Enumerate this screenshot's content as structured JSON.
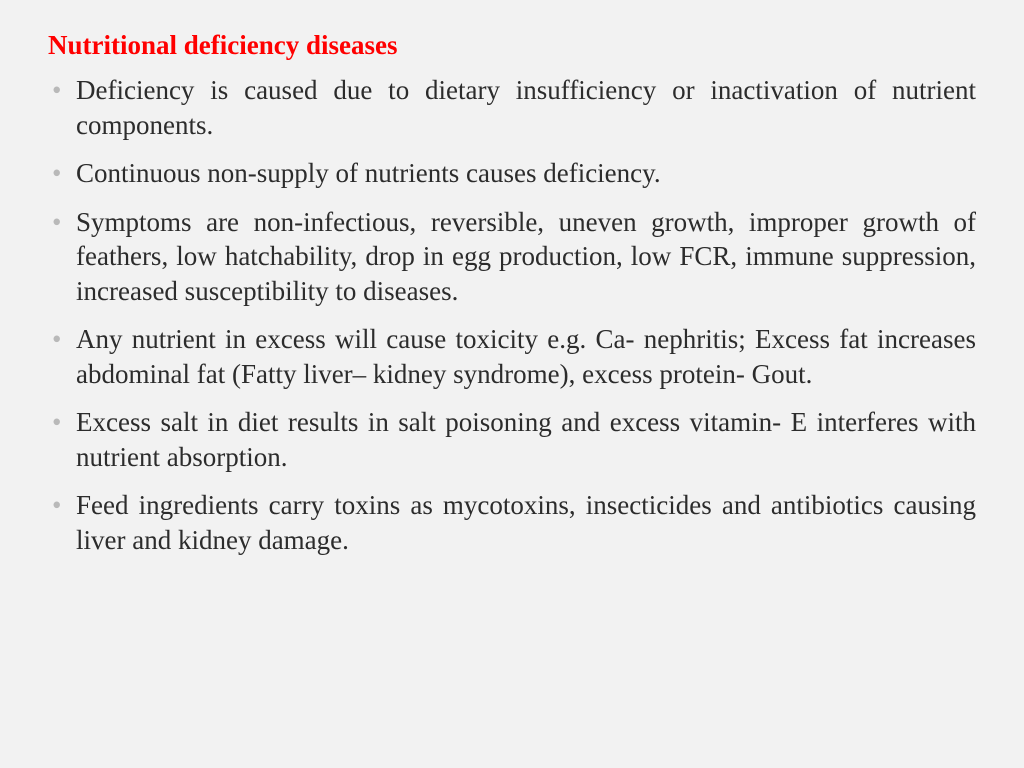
{
  "title": "Nutritional deficiency diseases",
  "title_color": "#ff0000",
  "title_fontsize": 27,
  "title_fontweight": "bold",
  "body_font": "Times New Roman",
  "body_fontsize": 27,
  "body_color": "#2c2c2c",
  "bullet_color": "#b9b9b9",
  "background_color": "#f2f2f2",
  "text_align": "justify",
  "bullets": [
    "Deficiency is caused due to dietary insufficiency or inactivation of nutrient components.",
    "Continuous non-supply of nutrients causes deficiency.",
    "Symptoms are non-infectious, reversible, uneven growth, improper growth of feathers, low hatchability, drop in egg production, low FCR, immune suppression, increased susceptibility to diseases.",
    "Any nutrient in excess will cause toxicity e.g. Ca- nephritis; Excess fat increases abdominal fat (Fatty liver– kidney syndrome), excess protein- Gout.",
    "Excess salt in diet results in salt poisoning and excess vitamin- E interferes with nutrient absorption.",
    "Feed ingredients carry toxins as mycotoxins, insecticides and antibiotics causing liver and kidney damage."
  ]
}
